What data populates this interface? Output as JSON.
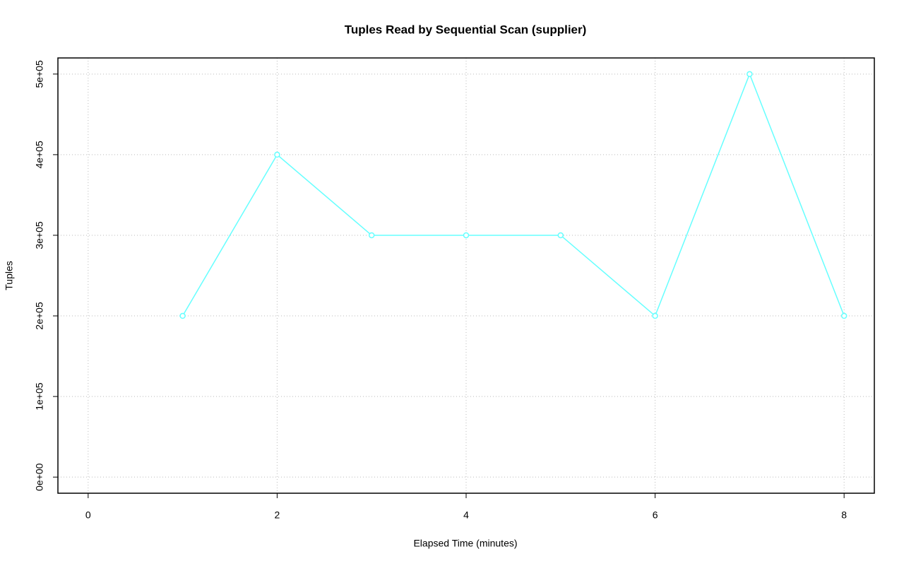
{
  "chart_data": {
    "type": "line",
    "title": "Tuples Read by Sequential Scan (supplier)",
    "x_label": "Elapsed Time (minutes)",
    "y_label": "Tuples",
    "series": [
      {
        "name": "supplier",
        "color": "#66ffff",
        "x": [
          1,
          2,
          3,
          4,
          5,
          6,
          7,
          8
        ],
        "values": [
          200000,
          400000,
          300000,
          300000,
          300000,
          200000,
          500000,
          200000
        ]
      }
    ],
    "xlim": [
      -0.32,
      8.32
    ],
    "xticks": [
      0,
      2,
      4,
      6,
      8
    ],
    "ylim": [
      -20000,
      520000
    ],
    "yticks": [
      {
        "value": 0,
        "label": "0e+00"
      },
      {
        "value": 100000,
        "label": "1e+05"
      },
      {
        "value": 200000,
        "label": "2e+05"
      },
      {
        "value": 300000,
        "label": "3e+05"
      },
      {
        "value": 400000,
        "label": "4e+05"
      },
      {
        "value": 500000,
        "label": "5e+05"
      }
    ],
    "grid": true
  }
}
